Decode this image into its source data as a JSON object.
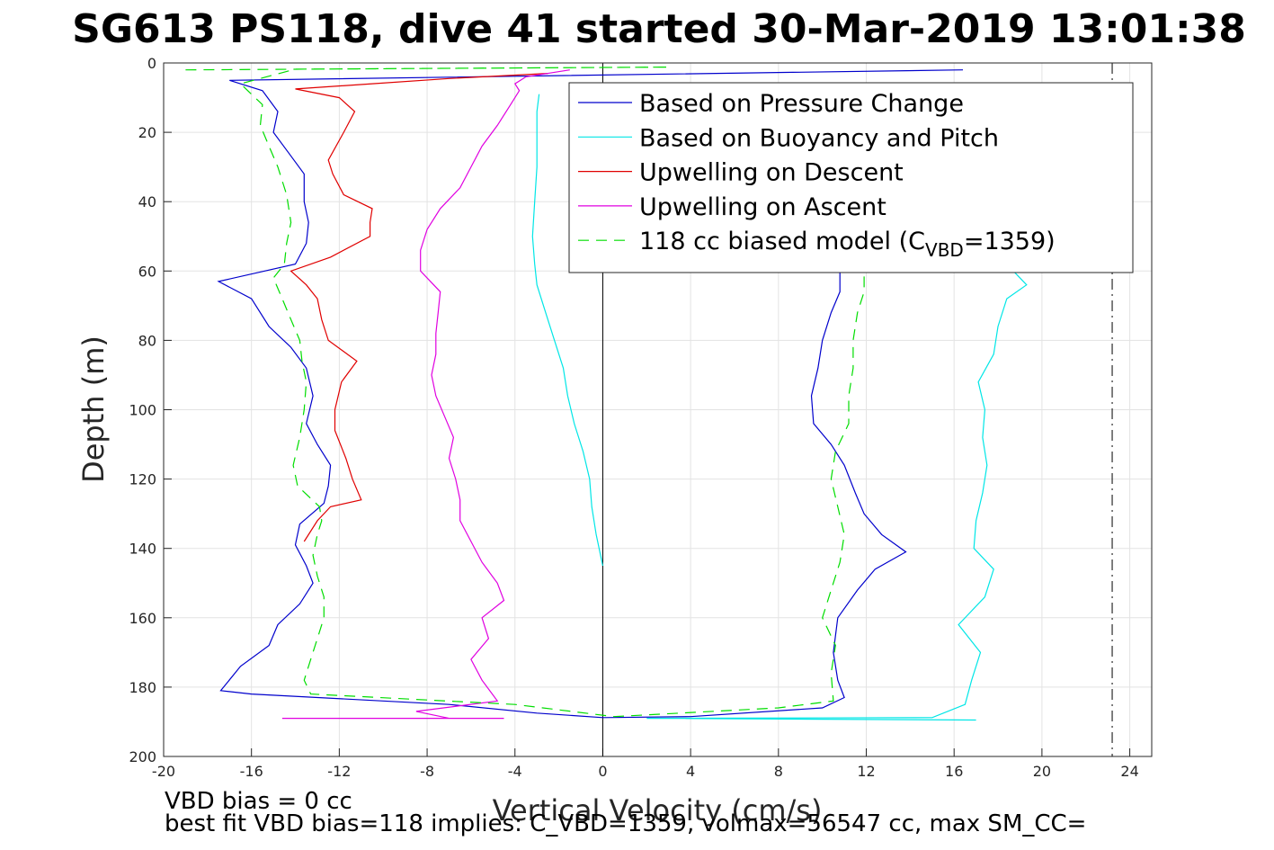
{
  "title": "SG613 PS118, dive 41 started 30-Mar-2019 13:01:38",
  "notes": {
    "line1": "VBD bias = 0 cc",
    "line2": "best fit VBD bias=118 implies: C_VBD=1359, volmax=56547 cc, max SM_CC="
  },
  "chart_data": {
    "type": "line",
    "title": "SG613 PS118, dive 41 started 30-Mar-2019 13:01:38",
    "xlabel": "Vertical Velocity (cm/s)",
    "ylabel": "Depth (m)",
    "xlim": [
      -20,
      25
    ],
    "ylim": [
      0,
      200
    ],
    "y_reversed": true,
    "grid": true,
    "legend_location": "top-right",
    "xticks": [
      -20,
      -16,
      -12,
      -8,
      -4,
      0,
      4,
      8,
      12,
      16,
      20,
      24
    ],
    "yticks": [
      0,
      20,
      40,
      60,
      80,
      100,
      120,
      140,
      160,
      180,
      200
    ],
    "reference_lines": [
      {
        "axis": "x",
        "value": 0,
        "style": "solid",
        "color": "#000000"
      },
      {
        "axis": "x",
        "value": 23.2,
        "style": "dashdot",
        "color": "#000000"
      }
    ],
    "legend": [
      {
        "label": "Based on Pressure Change",
        "color": "#0000cc",
        "style": "solid"
      },
      {
        "label": "Based on Buoyancy and Pitch",
        "color": "#00e6e6",
        "style": "solid"
      },
      {
        "label": "Upwelling on Descent",
        "color": "#e00000",
        "style": "solid"
      },
      {
        "label": "Upwelling on Ascent",
        "color": "#e000e0",
        "style": "solid"
      },
      {
        "label": "118 cc biased model (C",
        "sub": "VBD",
        "suffix": "=1359)",
        "color": "#00dd00",
        "style": "dashed"
      }
    ],
    "series": [
      {
        "name": "Based on Pressure Change",
        "color": "#0000cc",
        "dash": "",
        "points": [
          [
            16.4,
            2
          ],
          [
            -17,
            5
          ],
          [
            -15.5,
            8
          ],
          [
            -14.8,
            14
          ],
          [
            -15,
            20
          ],
          [
            -14.3,
            26
          ],
          [
            -13.6,
            32
          ],
          [
            -13.6,
            40
          ],
          [
            -13.4,
            46
          ],
          [
            -13.5,
            52
          ],
          [
            -14,
            58
          ],
          [
            -17.5,
            63
          ],
          [
            -16,
            68
          ],
          [
            -15.2,
            76
          ],
          [
            -14.2,
            82
          ],
          [
            -13.5,
            88
          ],
          [
            -13.2,
            96
          ],
          [
            -13.5,
            104
          ],
          [
            -13,
            110
          ],
          [
            -12.4,
            116
          ],
          [
            -12.5,
            122
          ],
          [
            -12.7,
            127
          ],
          [
            -13.8,
            133
          ],
          [
            -14,
            139
          ],
          [
            -13.5,
            145
          ],
          [
            -13.2,
            150
          ],
          [
            -13.8,
            156
          ],
          [
            -14.8,
            162
          ],
          [
            -15.2,
            168
          ],
          [
            -16.5,
            174
          ],
          [
            -17.4,
            181
          ],
          [
            -16,
            182
          ],
          [
            -7,
            185
          ],
          [
            -3,
            187.5
          ],
          [
            0,
            188.8
          ],
          [
            4,
            188.5
          ],
          [
            10,
            186
          ],
          [
            11,
            183
          ],
          [
            10.7,
            178
          ],
          [
            10.5,
            170
          ],
          [
            10.7,
            160
          ],
          [
            11.6,
            152
          ],
          [
            12.4,
            146
          ],
          [
            13.8,
            141
          ],
          [
            12.7,
            136
          ],
          [
            11.9,
            130
          ],
          [
            11.5,
            124
          ],
          [
            11.0,
            116
          ],
          [
            10.4,
            110
          ],
          [
            9.6,
            104
          ],
          [
            9.5,
            96
          ],
          [
            9.8,
            88
          ],
          [
            10.0,
            80
          ],
          [
            10.4,
            72
          ],
          [
            10.8,
            66
          ],
          [
            10.8,
            60
          ]
        ]
      },
      {
        "name": "Based on Buoyancy and Pitch",
        "color": "#00e6e6",
        "dash": "",
        "points": [
          [
            -2.9,
            9
          ],
          [
            -3.0,
            14
          ],
          [
            -3.0,
            22
          ],
          [
            -3.0,
            30
          ],
          [
            -3.1,
            40
          ],
          [
            -3.2,
            50
          ],
          [
            -3.1,
            58
          ],
          [
            -3.0,
            64
          ],
          [
            -2.6,
            72
          ],
          [
            -2.2,
            80
          ],
          [
            -1.8,
            88
          ],
          [
            -1.6,
            96
          ],
          [
            -1.3,
            104
          ],
          [
            -0.9,
            112
          ],
          [
            -0.6,
            120
          ],
          [
            -0.5,
            128
          ],
          [
            -0.3,
            136
          ],
          [
            0,
            145
          ]
        ]
      },
      {
        "name": "Based on Buoyancy and Pitch",
        "color": "#00e6e6",
        "dash": "",
        "points": [
          [
            17,
            189.5
          ],
          [
            2,
            189
          ],
          [
            15,
            188.8
          ],
          [
            16.5,
            185
          ],
          [
            16.8,
            178
          ],
          [
            17.2,
            170
          ],
          [
            16.2,
            162
          ],
          [
            17.4,
            154
          ],
          [
            17.8,
            146
          ],
          [
            16.9,
            140
          ],
          [
            17,
            132
          ],
          [
            17.3,
            124
          ],
          [
            17.5,
            116
          ],
          [
            17.3,
            108
          ],
          [
            17.4,
            100
          ],
          [
            17.1,
            92
          ],
          [
            17.8,
            84
          ],
          [
            18.0,
            76
          ],
          [
            18.4,
            68
          ],
          [
            19.3,
            64
          ],
          [
            18.7,
            60
          ]
        ]
      },
      {
        "name": "Upwelling on Descent",
        "color": "#e00000",
        "dash": "",
        "points": [
          [
            -2.5,
            3
          ],
          [
            -7,
            4.5
          ],
          [
            -10.5,
            6
          ],
          [
            -14,
            7.5
          ],
          [
            -12,
            10
          ],
          [
            -11.3,
            14
          ],
          [
            -11.8,
            20
          ],
          [
            -12.5,
            28
          ],
          [
            -12.3,
            32
          ],
          [
            -11.8,
            38
          ],
          [
            -10.5,
            42
          ],
          [
            -10.6,
            46
          ],
          [
            -10.6,
            50
          ],
          [
            -12.4,
            56
          ],
          [
            -14.2,
            60
          ],
          [
            -13.5,
            64
          ],
          [
            -13.0,
            68
          ],
          [
            -12.8,
            74
          ],
          [
            -12.5,
            80
          ],
          [
            -11.2,
            86
          ],
          [
            -11.9,
            92
          ],
          [
            -12.2,
            100
          ],
          [
            -12.2,
            106
          ],
          [
            -11.7,
            114
          ],
          [
            -11.4,
            120
          ],
          [
            -11.0,
            126
          ],
          [
            -12.4,
            128
          ],
          [
            -13.0,
            132
          ],
          [
            -13.6,
            138
          ]
        ]
      },
      {
        "name": "Upwelling on Ascent",
        "color": "#e000e0",
        "dash": "",
        "points": [
          [
            -4.5,
            189
          ],
          [
            -14.6,
            189
          ],
          [
            -7,
            189
          ],
          [
            -8.5,
            187
          ],
          [
            -4.8,
            184
          ],
          [
            -5.5,
            178
          ],
          [
            -6.0,
            172
          ],
          [
            -5.2,
            166
          ],
          [
            -5.5,
            160
          ],
          [
            -4.5,
            155
          ],
          [
            -4.8,
            150
          ],
          [
            -5.5,
            144
          ],
          [
            -6.0,
            138
          ],
          [
            -6.5,
            132
          ],
          [
            -6.5,
            126
          ],
          [
            -6.7,
            120
          ],
          [
            -7.0,
            114
          ],
          [
            -6.8,
            108
          ],
          [
            -7.2,
            102
          ],
          [
            -7.6,
            96
          ],
          [
            -7.8,
            90
          ],
          [
            -7.6,
            84
          ],
          [
            -7.6,
            78
          ],
          [
            -7.5,
            72
          ],
          [
            -7.4,
            66
          ],
          [
            -8.3,
            60
          ],
          [
            -8.3,
            54
          ],
          [
            -8.0,
            48
          ],
          [
            -7.4,
            42
          ],
          [
            -6.5,
            36
          ],
          [
            -6.0,
            30
          ],
          [
            -5.5,
            24
          ],
          [
            -4.8,
            18
          ],
          [
            -4.2,
            12
          ],
          [
            -3.8,
            8
          ],
          [
            -4.0,
            6
          ],
          [
            -3.5,
            4
          ],
          [
            -1.5,
            2
          ]
        ]
      },
      {
        "name": "118 cc biased model (CVBD=1359)",
        "color": "#00dd00",
        "dash": "12,8",
        "points": [
          [
            -19,
            2
          ],
          [
            3,
            1.2
          ],
          [
            -14,
            1.8
          ],
          [
            -16.5,
            6
          ],
          [
            -15.5,
            12
          ],
          [
            -15.6,
            18
          ],
          [
            -15.2,
            24
          ],
          [
            -14.8,
            30
          ],
          [
            -14.4,
            38
          ],
          [
            -14.2,
            46
          ],
          [
            -14.4,
            52
          ],
          [
            -14.5,
            58
          ],
          [
            -15.0,
            62
          ],
          [
            -14.6,
            68
          ],
          [
            -14.2,
            74
          ],
          [
            -13.8,
            80
          ],
          [
            -13.7,
            86
          ],
          [
            -13.5,
            92
          ],
          [
            -13.6,
            100
          ],
          [
            -13.8,
            108
          ],
          [
            -14.1,
            116
          ],
          [
            -13.9,
            122
          ],
          [
            -12.9,
            128
          ],
          [
            -12.8,
            132
          ],
          [
            -13.0,
            136
          ],
          [
            -13.2,
            142
          ],
          [
            -13.0,
            148
          ],
          [
            -12.7,
            154
          ],
          [
            -12.7,
            160
          ],
          [
            -13.0,
            166
          ],
          [
            -13.3,
            172
          ],
          [
            -13.6,
            178
          ],
          [
            -13.3,
            182
          ],
          [
            -4,
            185
          ],
          [
            0.5,
            188.5
          ],
          [
            8,
            186
          ],
          [
            10.5,
            184
          ],
          [
            10.4,
            176
          ],
          [
            10.6,
            168
          ],
          [
            10.0,
            160
          ],
          [
            10.4,
            152
          ],
          [
            10.8,
            144
          ],
          [
            11.0,
            136
          ],
          [
            10.7,
            128
          ],
          [
            10.4,
            120
          ],
          [
            10.6,
            112
          ],
          [
            11.2,
            104
          ],
          [
            11.2,
            96
          ],
          [
            11.4,
            88
          ],
          [
            11.4,
            80
          ],
          [
            11.6,
            72
          ],
          [
            11.9,
            66
          ],
          [
            11.9,
            60
          ]
        ]
      }
    ]
  }
}
